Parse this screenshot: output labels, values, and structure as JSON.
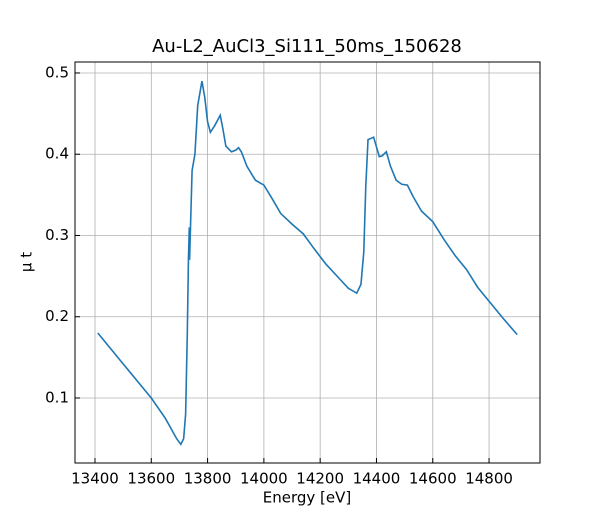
{
  "chart_data": {
    "type": "line",
    "title": "Au-L2_AuCl3_Si111_50ms_150628",
    "x_label": "Energy [eV]",
    "y_label": "μ t",
    "x": [
      13410,
      13500,
      13600,
      13650,
      13690,
      13705,
      13715,
      13722,
      13728,
      13732,
      13735,
      13736,
      13745,
      13755,
      13765,
      13780,
      13790,
      13800,
      13810,
      13825,
      13845,
      13855,
      13865,
      13885,
      13900,
      13910,
      13920,
      13940,
      13970,
      14000,
      14030,
      14060,
      14100,
      14140,
      14180,
      14220,
      14260,
      14300,
      14330,
      14345,
      14355,
      14362,
      14370,
      14390,
      14410,
      14420,
      14435,
      14450,
      14470,
      14490,
      14510,
      14530,
      14560,
      14600,
      14640,
      14680,
      14720,
      14760,
      14800,
      14850,
      14900
    ],
    "series": [
      {
        "name": "mu",
        "color": "#1f77b4",
        "values": [
          0.18,
          0.142,
          0.1,
          0.075,
          0.05,
          0.043,
          0.05,
          0.08,
          0.18,
          0.27,
          0.31,
          0.27,
          0.38,
          0.4,
          0.46,
          0.49,
          0.47,
          0.44,
          0.427,
          0.435,
          0.448,
          0.43,
          0.41,
          0.403,
          0.405,
          0.408,
          0.403,
          0.385,
          0.368,
          0.362,
          0.345,
          0.327,
          0.314,
          0.302,
          0.283,
          0.265,
          0.25,
          0.235,
          0.229,
          0.24,
          0.28,
          0.36,
          0.418,
          0.421,
          0.397,
          0.398,
          0.403,
          0.385,
          0.368,
          0.363,
          0.362,
          0.348,
          0.33,
          0.317,
          0.295,
          0.275,
          0.258,
          0.236,
          0.219,
          0.198,
          0.178
        ]
      }
    ],
    "xlim": [
      13329,
      14981
    ],
    "ylim": [
      0.02,
      0.5135
    ],
    "xticks": [
      13400,
      13600,
      13800,
      14000,
      14200,
      14400,
      14600,
      14800
    ],
    "yticks": [
      0.1,
      0.2,
      0.3,
      0.4,
      0.5
    ],
    "grid": true
  }
}
